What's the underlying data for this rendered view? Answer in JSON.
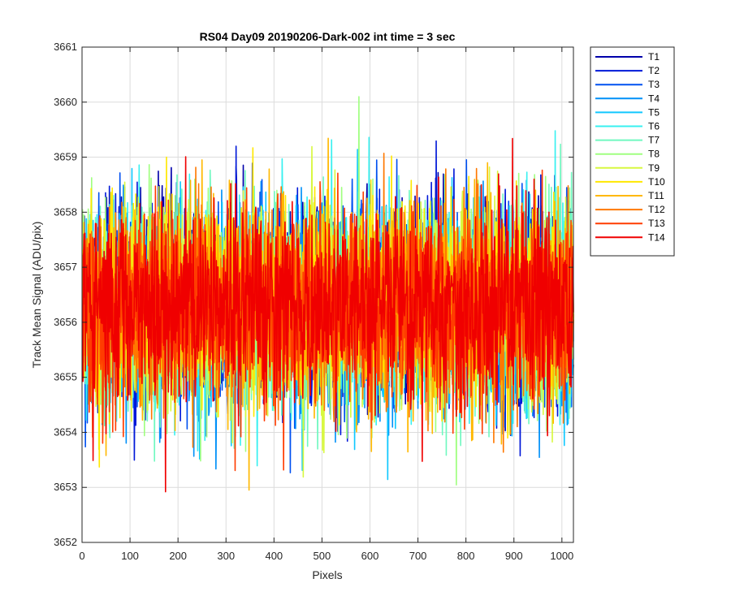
{
  "chart_data": {
    "type": "line",
    "title": "RS04 Day09 20190206-Dark-002 int time = 3 sec",
    "xlabel": "Pixels",
    "ylabel": "Track Mean Signal (ADU/pix)",
    "xlim": [
      0,
      1024
    ],
    "ylim": [
      3652,
      3661
    ],
    "xticks": [
      0,
      100,
      200,
      300,
      400,
      500,
      600,
      700,
      800,
      900,
      1000
    ],
    "yticks": [
      3652,
      3653,
      3654,
      3655,
      3656,
      3657,
      3658,
      3659,
      3660,
      3661
    ],
    "grid": true,
    "legend_position": "outside-top-right",
    "point_count": 1024,
    "noise_sigma": 0.9,
    "series": [
      {
        "name": "T1",
        "color": "#0000aa",
        "mean": 3656.4
      },
      {
        "name": "T2",
        "color": "#0018d8",
        "mean": 3656.3
      },
      {
        "name": "T3",
        "color": "#0050f0",
        "mean": 3656.3
      },
      {
        "name": "T4",
        "color": "#0090f8",
        "mean": 3656.2
      },
      {
        "name": "T5",
        "color": "#10c8ff",
        "mean": 3656.2
      },
      {
        "name": "T6",
        "color": "#38f0f0",
        "mean": 3656.3
      },
      {
        "name": "T7",
        "color": "#70f8c0",
        "mean": 3656.3
      },
      {
        "name": "T8",
        "color": "#a0ff80",
        "mean": 3656.2
      },
      {
        "name": "T9",
        "color": "#d8f840",
        "mean": 3656.3
      },
      {
        "name": "T10",
        "color": "#ffe800",
        "mean": 3656.4
      },
      {
        "name": "T11",
        "color": "#ffb800",
        "mean": 3656.3
      },
      {
        "name": "T12",
        "color": "#ff7800",
        "mean": 3656.2
      },
      {
        "name": "T13",
        "color": "#ff3c00",
        "mean": 3656.3
      },
      {
        "name": "T14",
        "color": "#f00000",
        "mean": 3656.3
      }
    ]
  }
}
